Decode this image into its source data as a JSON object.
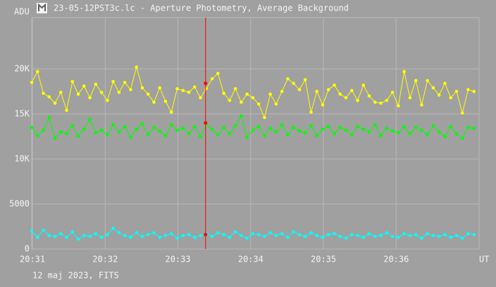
{
  "chart_data": {
    "type": "line",
    "title": "23-05-12PST3c.lc - Aperture Photometry, Average Background",
    "footer": "12 maj 2023, FITS",
    "ylabel": "ADU",
    "xlabel": "UT",
    "ylim": [
      0,
      25700
    ],
    "yticks": [
      0,
      5000,
      {
        "value": 10000,
        "label": "10K"
      },
      {
        "value": 15000,
        "label": "15K"
      },
      {
        "value": 20000,
        "label": "20K"
      }
    ],
    "xlim": [
      30.99,
      37.14
    ],
    "xticks": [
      {
        "value": 31,
        "label": "20:31"
      },
      {
        "value": 32,
        "label": "20:32"
      },
      {
        "value": 33,
        "label": "20:33"
      },
      {
        "value": 34,
        "label": "20:34"
      },
      {
        "value": 35,
        "label": "20:35"
      },
      {
        "value": 36,
        "label": "20:36"
      }
    ],
    "grid": true,
    "x": [
      30.99,
      31.07,
      31.15,
      31.23,
      31.31,
      31.39,
      31.47,
      31.55,
      31.63,
      31.71,
      31.79,
      31.87,
      31.95,
      32.03,
      32.11,
      32.19,
      32.27,
      32.35,
      32.43,
      32.51,
      32.59,
      32.67,
      32.75,
      32.83,
      32.91,
      32.99,
      33.07,
      33.15,
      33.23,
      33.31,
      33.39,
      33.47,
      33.55,
      33.63,
      33.71,
      33.79,
      33.87,
      33.95,
      34.03,
      34.11,
      34.19,
      34.27,
      34.35,
      34.43,
      34.51,
      34.59,
      34.67,
      34.75,
      34.83,
      34.91,
      34.99,
      35.07,
      35.15,
      35.23,
      35.31,
      35.39,
      35.47,
      35.55,
      35.63,
      35.71,
      35.79,
      35.87,
      35.95,
      36.03,
      36.11,
      36.19,
      36.27,
      36.35,
      36.43,
      36.51,
      36.59,
      36.67,
      36.75,
      36.83,
      36.91,
      36.99,
      37.07
    ],
    "series": [
      {
        "color": "#ffff00",
        "values": [
          18500,
          19700,
          17300,
          16900,
          16200,
          17400,
          15400,
          18600,
          17200,
          18100,
          16800,
          18300,
          17400,
          16500,
          18600,
          17400,
          18500,
          17700,
          20200,
          17900,
          17200,
          16300,
          17900,
          16400,
          15200,
          17800,
          17600,
          17400,
          18000,
          16800,
          17800,
          18900,
          19500,
          17300,
          16500,
          17800,
          16300,
          17200,
          16800,
          16100,
          14600,
          17200,
          16100,
          17500,
          18900,
          18400,
          17700,
          18800,
          15200,
          17500,
          16000,
          17700,
          18200,
          17200,
          16800,
          17600,
          16500,
          18200,
          17000,
          16300,
          16200,
          16500,
          17400,
          15900,
          19700,
          16800,
          18700,
          16000,
          18700,
          17900,
          17100,
          18400,
          16800,
          17500,
          15100,
          17700,
          17500
        ]
      },
      {
        "color": "#00ff00",
        "values": [
          13500,
          12600,
          13200,
          14600,
          12300,
          13000,
          12800,
          13700,
          12500,
          13300,
          14400,
          12900,
          13200,
          12700,
          13800,
          13000,
          13600,
          12400,
          13300,
          13900,
          12700,
          13500,
          13100,
          12600,
          13800,
          13200,
          13400,
          12800,
          13600,
          12500,
          13900,
          13300,
          12700,
          13500,
          12800,
          13700,
          14800,
          12400,
          13200,
          13600,
          12600,
          13400,
          13000,
          13800,
          12700,
          13500,
          13100,
          12900,
          13700,
          12600,
          13300,
          13600,
          12800,
          13500,
          13200,
          12700,
          13600,
          13300,
          13000,
          13800,
          12600,
          13400,
          13100,
          12900,
          13600,
          12800,
          13500,
          13200,
          12700,
          13700,
          13000,
          12500,
          13600,
          12800,
          12300,
          13500,
          13400
        ]
      },
      {
        "color": "#00ffff",
        "values": [
          2000,
          1300,
          2100,
          1500,
          1400,
          1700,
          1300,
          1900,
          1100,
          1500,
          1400,
          1700,
          1300,
          1600,
          2300,
          1800,
          1500,
          1300,
          1800,
          1400,
          1600,
          1800,
          1300,
          1500,
          1700,
          1200,
          1500,
          1600,
          1300,
          1500,
          1700,
          1400,
          1800,
          1600,
          1300,
          1900,
          1500,
          1200,
          1700,
          1600,
          1400,
          1800,
          1500,
          1700,
          1300,
          1900,
          1600,
          1400,
          1800,
          1500,
          1300,
          1600,
          1700,
          1400,
          1200,
          1600,
          1500,
          1300,
          1700,
          1400,
          1500,
          1800,
          1400,
          1300,
          1700,
          1500,
          1600,
          1200,
          1700,
          1500,
          1400,
          1600,
          1300,
          1500,
          1200,
          1700,
          1600
        ]
      }
    ],
    "cursor": {
      "x": 33.38,
      "color": "#ff0000",
      "values": [
        18400,
        14000,
        1600
      ]
    }
  }
}
